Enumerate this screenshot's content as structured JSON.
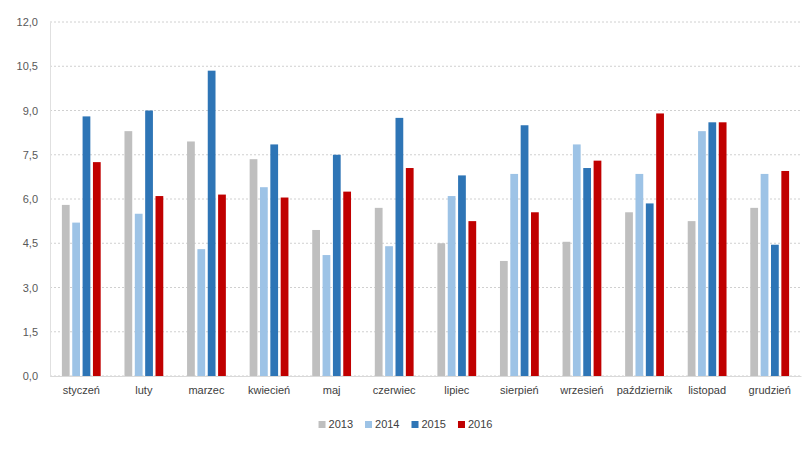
{
  "chart_data": {
    "type": "bar",
    "categories": [
      "styczeń",
      "luty",
      "marzec",
      "kwiecień",
      "maj",
      "czerwiec",
      "lipiec",
      "sierpień",
      "wrzesień",
      "październik",
      "listopad",
      "grudzień"
    ],
    "series": [
      {
        "name": "2013",
        "color": "#bfbfbf",
        "values": [
          5.8,
          8.3,
          7.95,
          7.35,
          4.95,
          5.7,
          4.5,
          3.9,
          4.55,
          5.55,
          5.25,
          5.7
        ]
      },
      {
        "name": "2014",
        "color": "#9dc3e6",
        "values": [
          5.2,
          5.5,
          4.3,
          6.4,
          4.1,
          4.4,
          6.1,
          6.85,
          7.85,
          6.85,
          8.3,
          6.85
        ]
      },
      {
        "name": "2015",
        "color": "#2e75b6",
        "values": [
          8.8,
          9.0,
          10.35,
          7.85,
          7.5,
          8.75,
          6.8,
          8.5,
          7.05,
          5.85,
          8.6,
          4.45
        ]
      },
      {
        "name": "2016",
        "color": "#c00000",
        "values": [
          7.25,
          6.1,
          6.15,
          6.05,
          6.25,
          7.05,
          5.25,
          5.55,
          7.3,
          8.9,
          8.6,
          6.95
        ]
      }
    ],
    "ylim": [
      0,
      12
    ],
    "yticks": [
      {
        "value": 0,
        "label": "0,0"
      },
      {
        "value": 1.5,
        "label": "1,5"
      },
      {
        "value": 3,
        "label": "3,0"
      },
      {
        "value": 4.5,
        "label": "4,5"
      },
      {
        "value": 6,
        "label": "6,0"
      },
      {
        "value": 7.5,
        "label": "7,5"
      },
      {
        "value": 9,
        "label": "9,0"
      },
      {
        "value": 10.5,
        "label": "10,5"
      },
      {
        "value": 12,
        "label": "12,0"
      }
    ],
    "grid": true,
    "legend": "bottom"
  }
}
